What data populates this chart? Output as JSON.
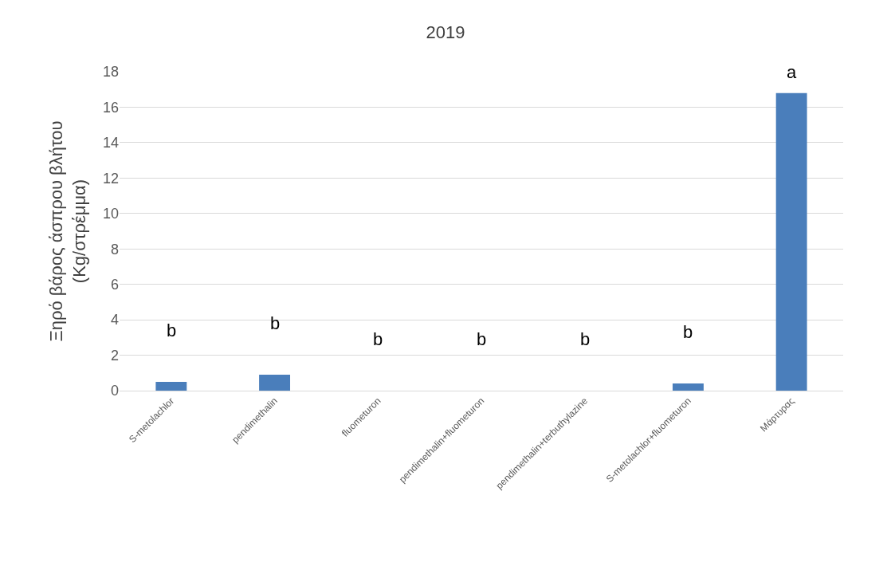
{
  "chart_data": {
    "type": "bar",
    "title": "2019",
    "ylabel": "Ξηρό βάρος άσπρου βλήτου\n(Kg/στρέμμα)",
    "categories": [
      "S-metolachlor",
      "pendimethalin",
      "fluometuron",
      "pendimethalin+fluometuron",
      "pendimethalin+terbuthylazine",
      "S-metolachlor+fluometuron",
      "Μάρτυρας"
    ],
    "values": [
      0.5,
      0.9,
      0,
      0,
      0,
      0.4,
      16.8
    ],
    "color": "#4a7ebb",
    "ylim": [
      0,
      18
    ],
    "yticks": [
      0,
      2,
      4,
      6,
      8,
      10,
      12,
      14,
      16,
      18
    ],
    "grid": "y",
    "annotations": [
      "b",
      "b",
      "b",
      "b",
      "b",
      "b",
      "a"
    ]
  }
}
